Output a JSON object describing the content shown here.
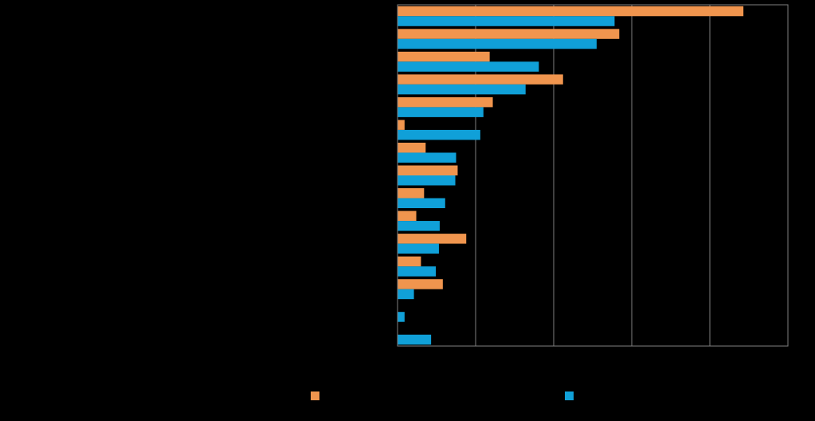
{
  "chart_data": {
    "type": "bar",
    "orientation": "horizontal",
    "categories": [
      "",
      "",
      "",
      "",
      "",
      "",
      "",
      "",
      "",
      "",
      "",
      "",
      "",
      "",
      ""
    ],
    "series": [
      {
        "color": "#F0954E",
        "values": [
          44.3,
          28.4,
          11.8,
          21.2,
          12.2,
          0.9,
          3.6,
          7.7,
          3.4,
          2.4,
          8.8,
          3.0,
          5.8,
          null,
          null
        ]
      },
      {
        "color": "#10A0D8",
        "values": [
          27.8,
          25.5,
          18.1,
          16.4,
          11.0,
          10.6,
          7.5,
          7.4,
          6.1,
          5.4,
          5.3,
          4.9,
          2.1,
          0.9,
          4.3
        ]
      }
    ],
    "xlim": [
      0,
      50
    ],
    "grid": true,
    "legend": {
      "position": "bottom"
    },
    "background": "#000000",
    "axis_color": "#808080"
  }
}
